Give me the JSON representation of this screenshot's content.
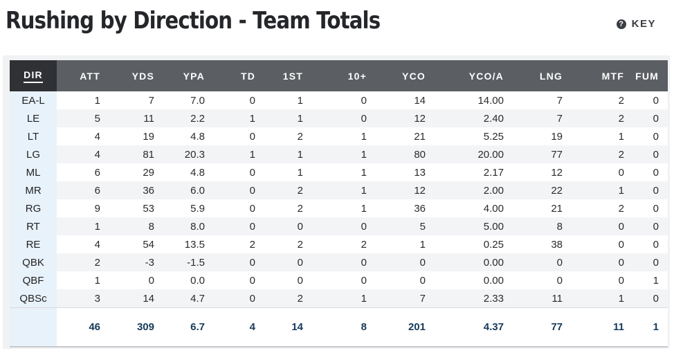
{
  "title": "Rushing by Direction - Team Totals",
  "key_label": "KEY",
  "key_icon": "?",
  "headers": [
    "DIR",
    "ATT",
    "YDS",
    "YPA",
    "TD",
    "1ST",
    "10+",
    "YCO",
    "YCO/A",
    "LNG",
    "MTF",
    "FUM"
  ],
  "rows": [
    [
      "EA-L",
      "1",
      "7",
      "7.0",
      "0",
      "1",
      "0",
      "14",
      "14.00",
      "7",
      "2",
      "0"
    ],
    [
      "LE",
      "5",
      "11",
      "2.2",
      "1",
      "1",
      "0",
      "12",
      "2.40",
      "7",
      "2",
      "0"
    ],
    [
      "LT",
      "4",
      "19",
      "4.8",
      "0",
      "2",
      "1",
      "21",
      "5.25",
      "19",
      "1",
      "0"
    ],
    [
      "LG",
      "4",
      "81",
      "20.3",
      "1",
      "1",
      "1",
      "80",
      "20.00",
      "77",
      "2",
      "0"
    ],
    [
      "ML",
      "6",
      "29",
      "4.8",
      "0",
      "1",
      "1",
      "13",
      "2.17",
      "12",
      "0",
      "0"
    ],
    [
      "MR",
      "6",
      "36",
      "6.0",
      "0",
      "2",
      "1",
      "12",
      "2.00",
      "22",
      "1",
      "0"
    ],
    [
      "RG",
      "9",
      "53",
      "5.9",
      "0",
      "2",
      "1",
      "36",
      "4.00",
      "21",
      "2",
      "0"
    ],
    [
      "RT",
      "1",
      "8",
      "8.0",
      "0",
      "0",
      "0",
      "5",
      "5.00",
      "8",
      "0",
      "0"
    ],
    [
      "RE",
      "4",
      "54",
      "13.5",
      "2",
      "2",
      "2",
      "1",
      "0.25",
      "38",
      "0",
      "0"
    ],
    [
      "QBK",
      "2",
      "-3",
      "-1.5",
      "0",
      "0",
      "0",
      "0",
      "0.00",
      "0",
      "0",
      "0"
    ],
    [
      "QBF",
      "1",
      "0",
      "0.0",
      "0",
      "0",
      "0",
      "0",
      "0.00",
      "0",
      "0",
      "1"
    ],
    [
      "QBSc",
      "3",
      "14",
      "4.7",
      "0",
      "2",
      "1",
      "7",
      "2.33",
      "11",
      "1",
      "0"
    ]
  ],
  "totals": [
    "",
    "46",
    "309",
    "6.7",
    "4",
    "14",
    "8",
    "201",
    "4.37",
    "77",
    "11",
    "1"
  ],
  "colors": {
    "header_bg": "#5b5e63",
    "header_dir_bg": "#2f3135",
    "dir_col_bg": "#e8f2fb",
    "totals_text": "#163a5a"
  }
}
